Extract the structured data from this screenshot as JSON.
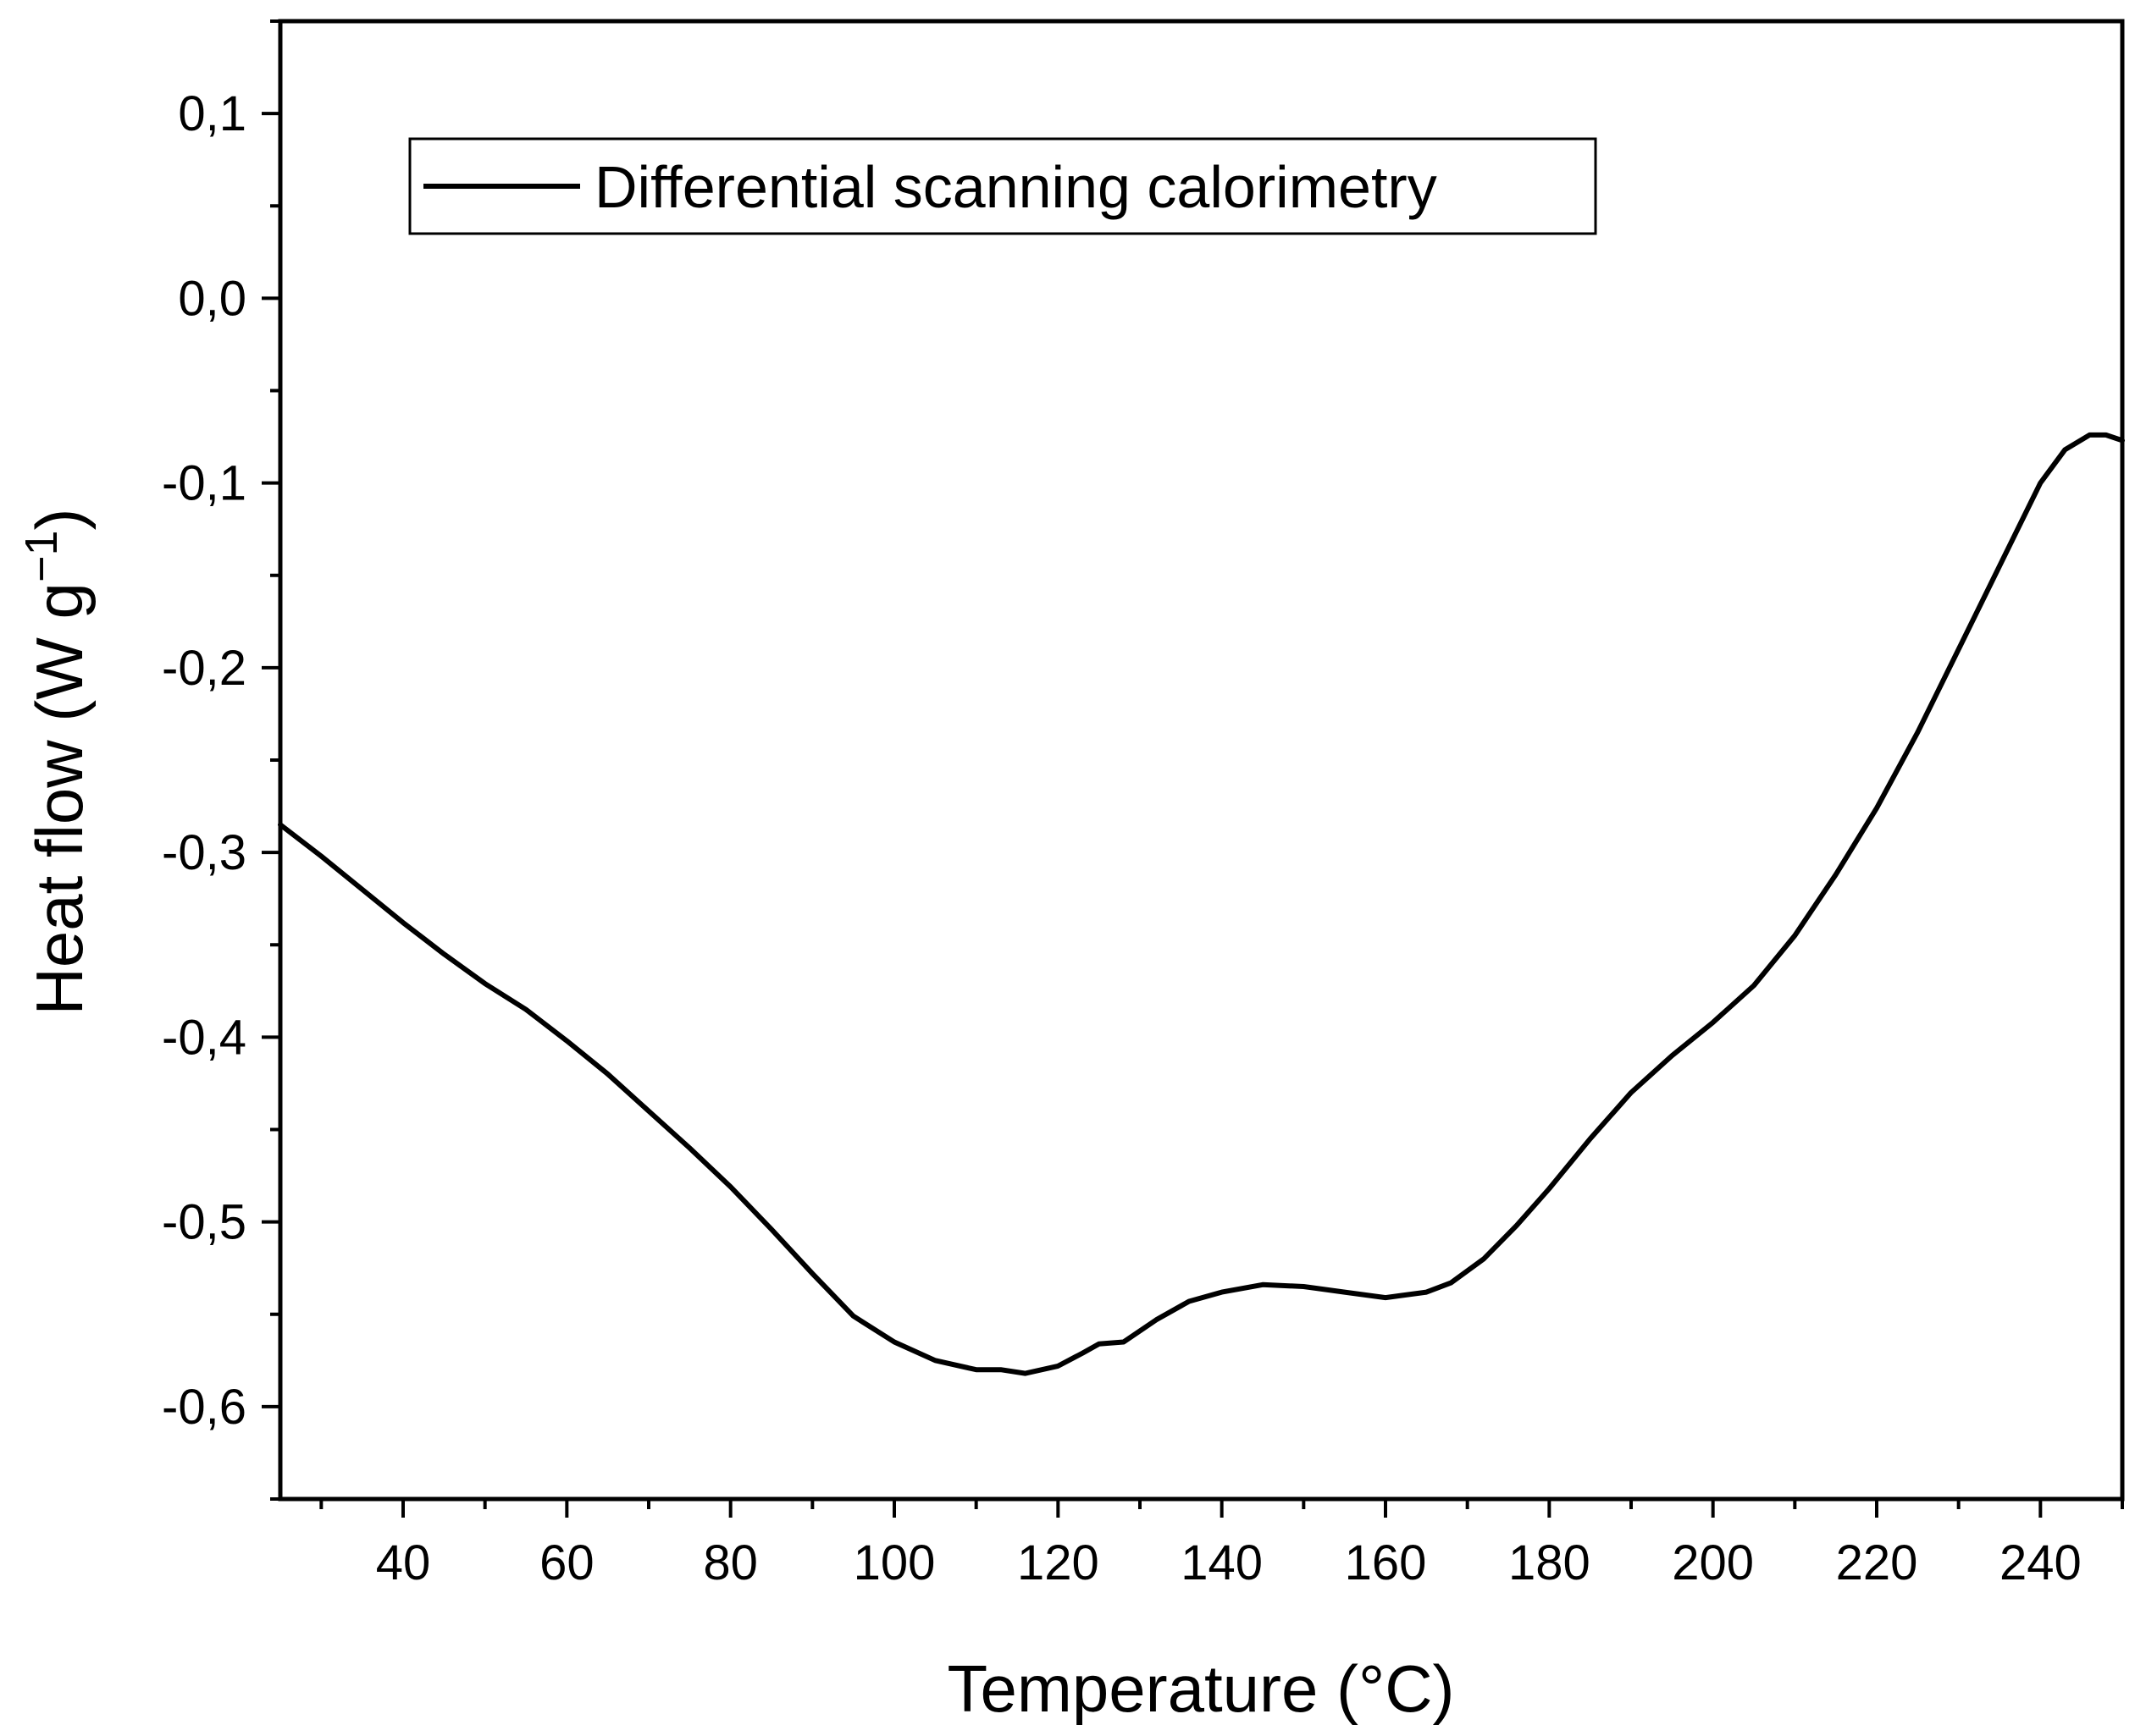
{
  "chart_data": {
    "type": "line",
    "title": "",
    "xlabel": "Temperature (°C)",
    "ylabel_main": "Heat flow (W g",
    "ylabel_sup": "−1",
    "ylabel_close": ")",
    "xlim": [
      25,
      250
    ],
    "ylim": [
      -0.65,
      0.15
    ],
    "x_major_ticks": [
      40,
      60,
      80,
      100,
      120,
      140,
      160,
      180,
      200,
      220,
      240
    ],
    "x_tick_labels": [
      "40",
      "60",
      "80",
      "100",
      "120",
      "140",
      "160",
      "180",
      "200",
      "220",
      "240"
    ],
    "y_major_ticks": [
      0.1,
      0.0,
      -0.1,
      -0.2,
      -0.3,
      -0.4,
      -0.5,
      -0.6
    ],
    "y_tick_labels": [
      "0,1",
      "0,0",
      "-0,1",
      "-0,2",
      "-0,3",
      "-0,4",
      "-0,5",
      "-0,6"
    ],
    "legend": {
      "placement": "top-left",
      "entries": [
        "Differential scanning calorimetry"
      ]
    },
    "grid": false,
    "series": [
      {
        "name": "Differential scanning calorimetry",
        "color": "#000000",
        "x": [
          25,
          30,
          35,
          40,
          45,
          50,
          55,
          60,
          65,
          70,
          75,
          80,
          85,
          90,
          95,
          100,
          105,
          110,
          113,
          116,
          120,
          123,
          125,
          128,
          132,
          136,
          140,
          145,
          150,
          155,
          160,
          165,
          168,
          172,
          176,
          180,
          185,
          190,
          195,
          200,
          205,
          210,
          215,
          220,
          225,
          230,
          235,
          240,
          243,
          246,
          248,
          250
        ],
        "y": [
          -0.285,
          -0.302,
          -0.32,
          -0.338,
          -0.355,
          -0.371,
          -0.385,
          -0.402,
          -0.42,
          -0.44,
          -0.46,
          -0.481,
          -0.504,
          -0.528,
          -0.551,
          -0.565,
          -0.575,
          -0.58,
          -0.58,
          -0.582,
          -0.578,
          -0.571,
          -0.566,
          -0.565,
          -0.553,
          -0.543,
          -0.538,
          -0.534,
          -0.535,
          -0.538,
          -0.541,
          -0.538,
          -0.533,
          -0.52,
          -0.502,
          -0.482,
          -0.455,
          -0.43,
          -0.41,
          -0.392,
          -0.372,
          -0.345,
          -0.312,
          -0.276,
          -0.235,
          -0.19,
          -0.145,
          -0.1,
          -0.082,
          -0.074,
          -0.074,
          -0.077
        ]
      }
    ]
  }
}
